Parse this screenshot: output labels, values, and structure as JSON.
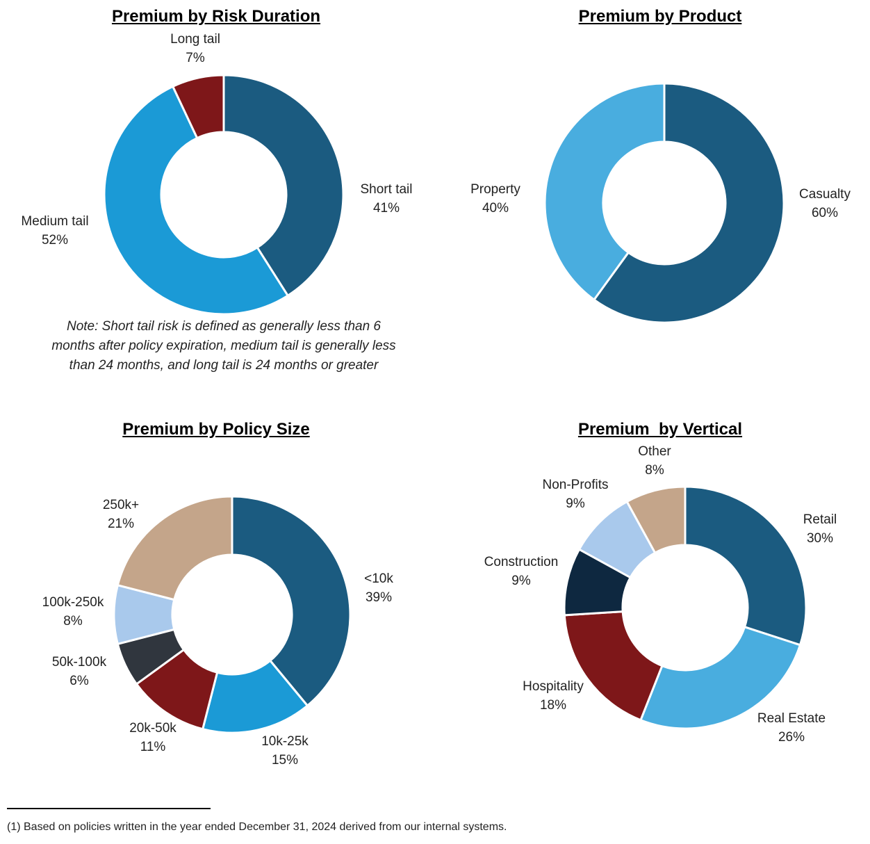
{
  "chart_data": [
    {
      "type": "pie",
      "title": "Premium by Risk Duration",
      "categories": [
        "Short tail",
        "Medium tail",
        "Long tail"
      ],
      "values": [
        41,
        52,
        7
      ],
      "labels": [
        "41%",
        "52%",
        "7%"
      ],
      "colors": [
        "#1b5b80",
        "#1b9ad6",
        "#7e1719"
      ],
      "note": "Note: Short tail risk is defined as generally less than 6 months after policy expiration, medium tail is generally less than 24 months, and long tail is 24 months or greater"
    },
    {
      "type": "pie",
      "title": "Premium by Product",
      "categories": [
        "Casualty",
        "Property"
      ],
      "values": [
        60,
        40
      ],
      "labels": [
        "60%",
        "40%"
      ],
      "colors": [
        "#1b5b80",
        "#49addf"
      ]
    },
    {
      "type": "pie",
      "title": "Premium by Policy Size",
      "categories": [
        "<10k",
        "10k-25k",
        "20k-50k",
        "50k-100k",
        "100k-250k",
        "250k+"
      ],
      "values": [
        39,
        15,
        11,
        6,
        8,
        21
      ],
      "labels": [
        "39%",
        "15%",
        "11%",
        "6%",
        "8%",
        "21%"
      ],
      "colors": [
        "#1b5b80",
        "#1b9ad6",
        "#7e1719",
        "#30363e",
        "#a9c9ec",
        "#c4a58a"
      ]
    },
    {
      "type": "pie",
      "title": "Premium  by Vertical",
      "categories": [
        "Retail",
        "Real Estate",
        "Hospitality",
        "Construction",
        "Non-Profits",
        "Other"
      ],
      "values": [
        30,
        26,
        18,
        9,
        9,
        8
      ],
      "labels": [
        "30%",
        "26%",
        "18%",
        "9%",
        "9%",
        "8%"
      ],
      "colors": [
        "#1b5b80",
        "#49addf",
        "#7e1719",
        "#0e2840",
        "#a9c9ec",
        "#c4a58a"
      ]
    }
  ],
  "footnote": "(1) Based on policies written in the year ended December 31, 2024 derived from our internal systems."
}
